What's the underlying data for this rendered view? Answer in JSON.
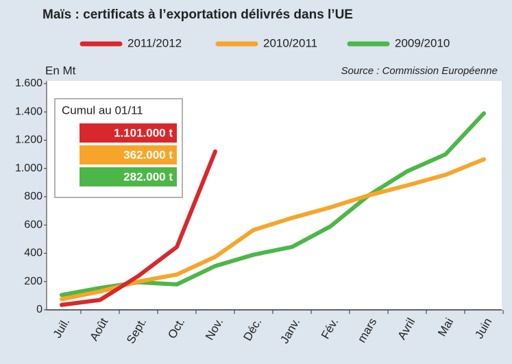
{
  "chart_data": {
    "type": "line",
    "title": "Maïs : certificats à l’exportation délivrés dans l’UE",
    "y_axis_label": "En Mt",
    "source": "Source : Commission Européenne",
    "categories": [
      "Juil.",
      "Août",
      "Sept.",
      "Oct.",
      "Nov.",
      "Déc.",
      "Janv.",
      "Fév.",
      "mars",
      "Avril",
      "Mai",
      "Juin"
    ],
    "series": [
      {
        "name": "2011/2012",
        "color": "#d9282b",
        "values": [
          35,
          70,
          240,
          445,
          1120,
          null,
          null,
          null,
          null,
          null,
          null,
          null
        ]
      },
      {
        "name": "2010/2011",
        "color": "#f7a52a",
        "values": [
          75,
          130,
          200,
          250,
          375,
          565,
          650,
          725,
          810,
          880,
          955,
          1065
        ]
      },
      {
        "name": "2009/2010",
        "color": "#4cb748",
        "values": [
          105,
          155,
          195,
          180,
          310,
          390,
          445,
          590,
          810,
          980,
          1100,
          1390
        ]
      }
    ],
    "ylim": [
      0,
      1600
    ],
    "yticks": [
      0,
      200,
      400,
      600,
      800,
      {
        "value": 1000,
        "label": "1.000"
      },
      {
        "value": 1200,
        "label": "1.200"
      },
      {
        "value": 1400,
        "label": "1.400"
      },
      {
        "value": 1600,
        "label": "1.600"
      }
    ],
    "grid": false,
    "legend": "top",
    "annotation_box": {
      "title": "Cumul au 01/11",
      "items": [
        {
          "label": "1.101.000 t",
          "color": "#d9282b"
        },
        {
          "label": "362.000 t",
          "color": "#f7a52a"
        },
        {
          "label": "282.000 t",
          "color": "#4cb748"
        }
      ]
    }
  }
}
